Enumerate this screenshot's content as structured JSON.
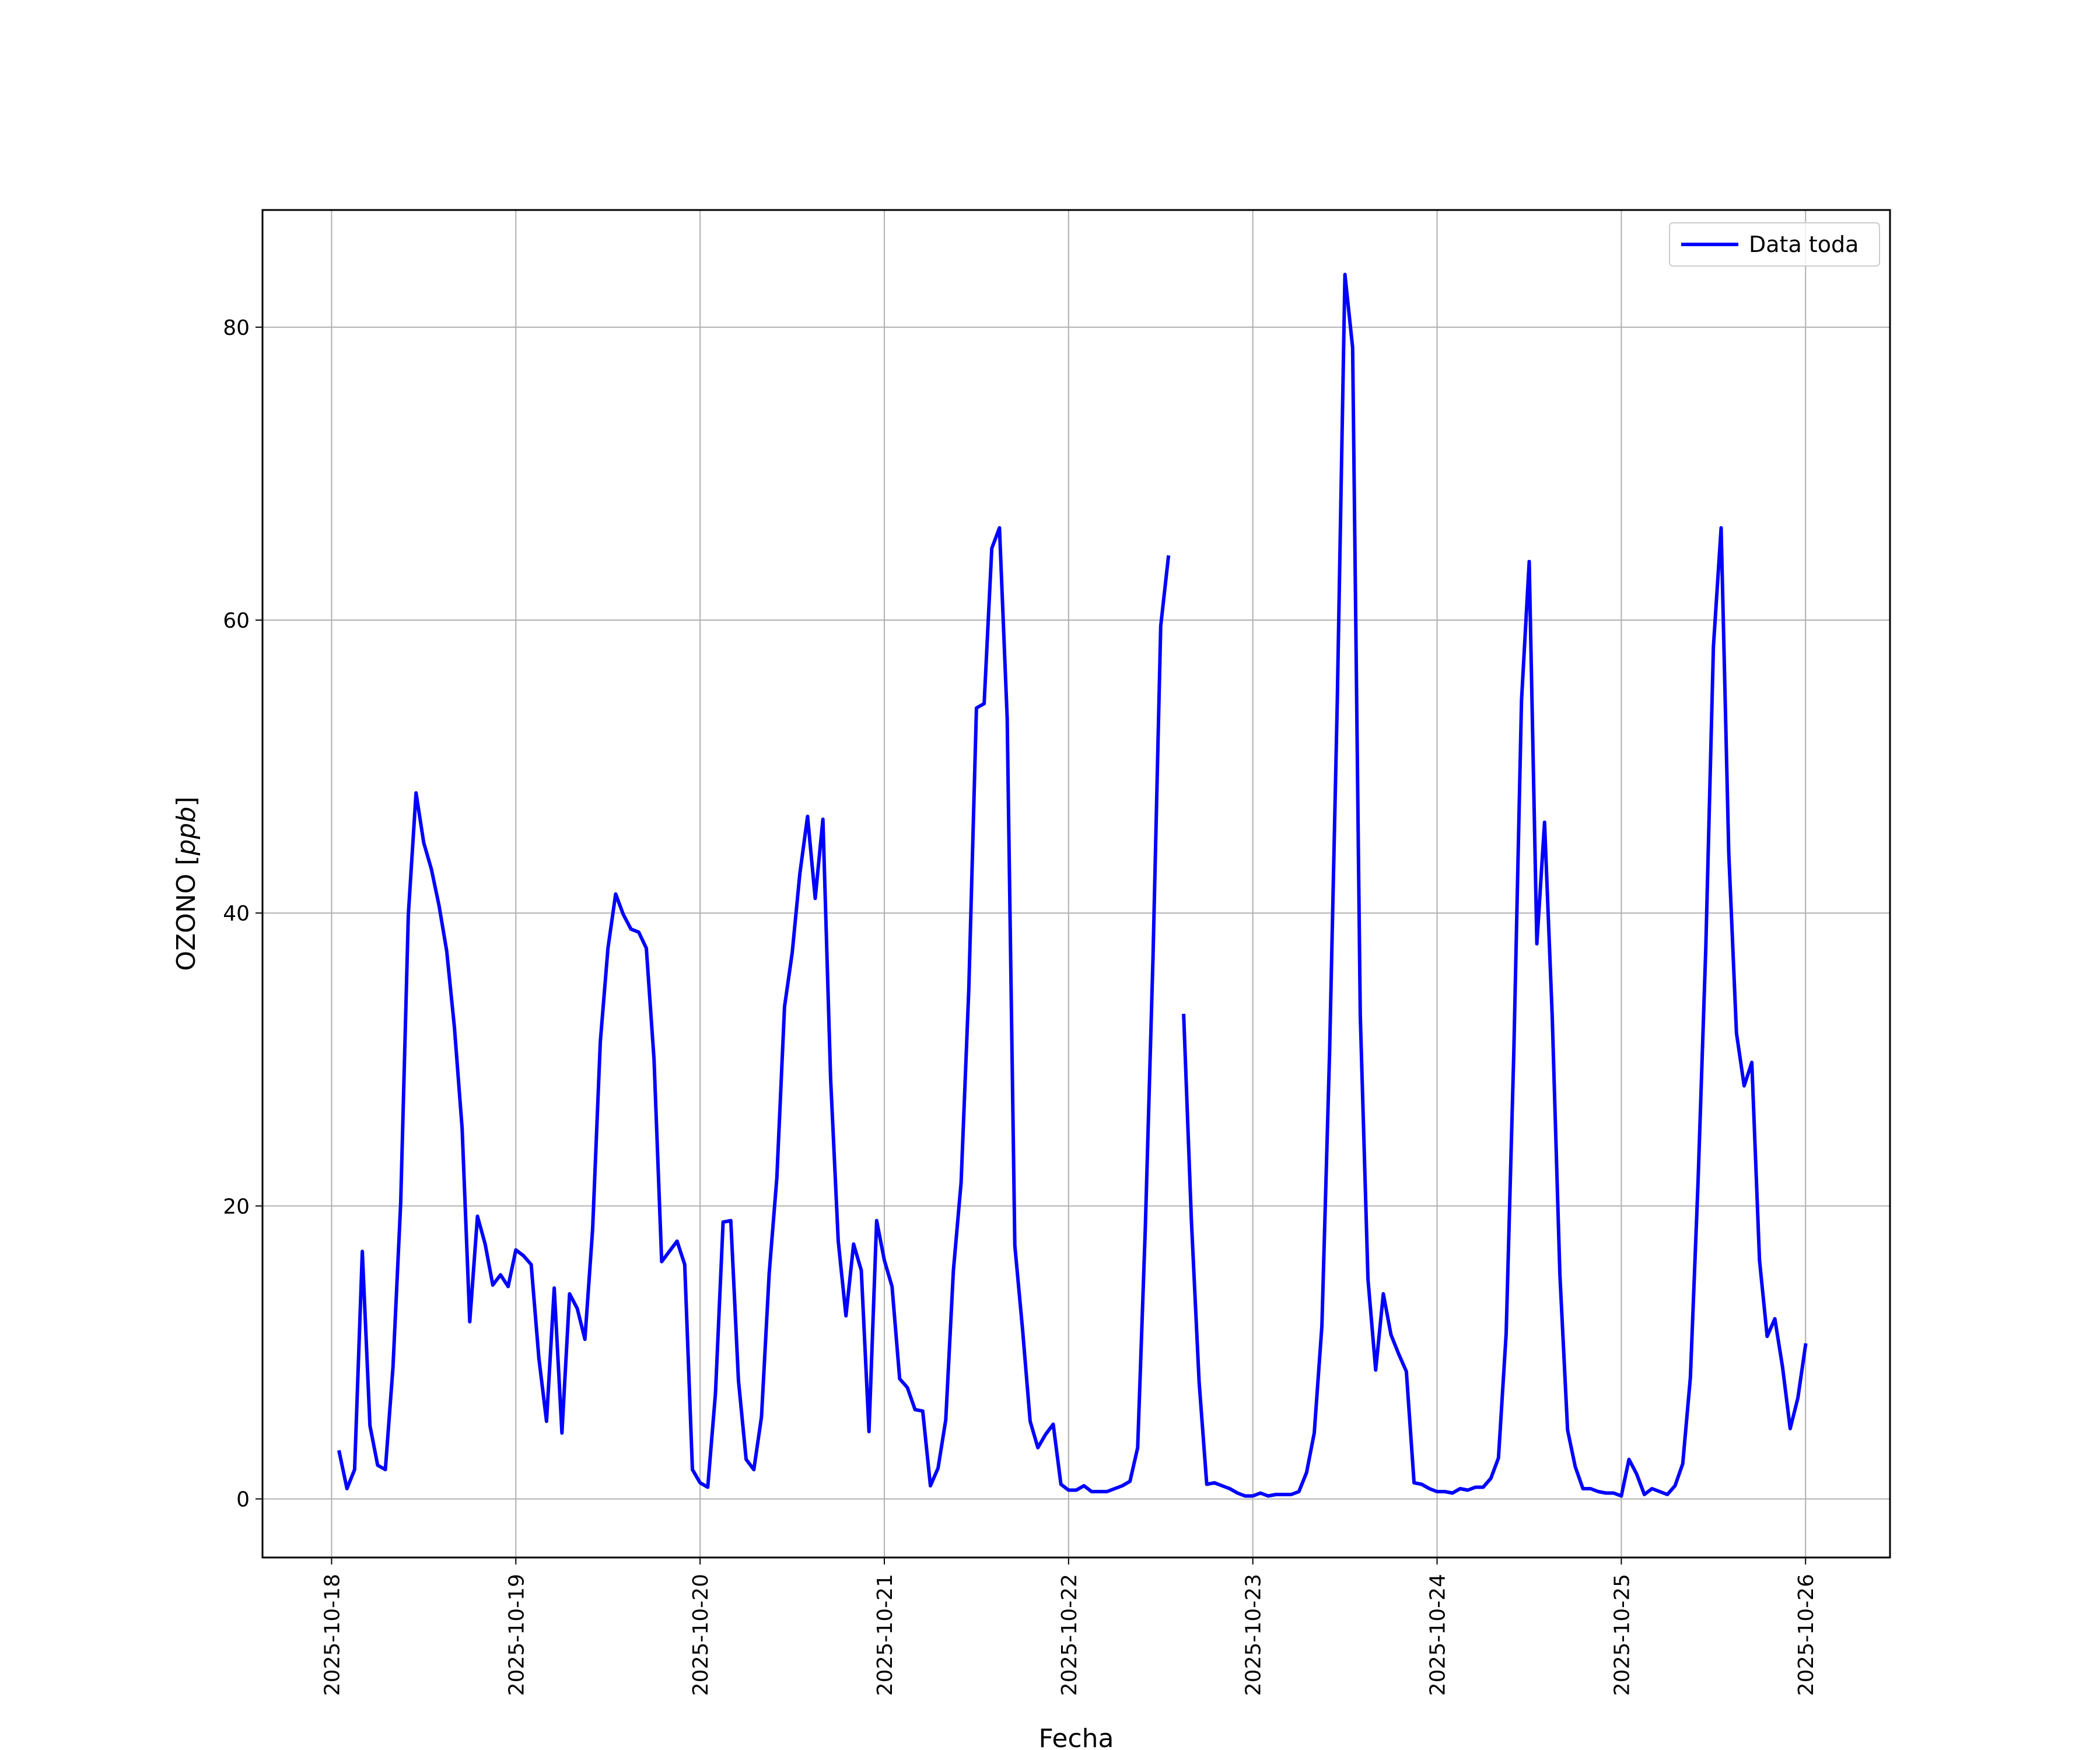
{
  "chart_data": {
    "type": "line",
    "title": "",
    "xlabel": "Fecha",
    "ylabel": "OZONO [ppb]",
    "ylabel_main": "OZONO [",
    "ylabel_unit": "ppb",
    "ylabel_close": "]",
    "x_start": "2025-10-18 00:00",
    "x_end": "2025-10-26 00:00",
    "xlim": [
      "2025-10-17 15:00",
      "2025-10-26 11:00"
    ],
    "ylim": [
      -4,
      88
    ],
    "x_ticks": [
      "2025-10-18",
      "2025-10-19",
      "2025-10-20",
      "2025-10-21",
      "2025-10-22",
      "2025-10-23",
      "2025-10-24",
      "2025-10-25",
      "2025-10-26"
    ],
    "y_ticks": [
      0,
      20,
      40,
      60,
      80
    ],
    "grid": true,
    "legend": {
      "position": "upper-right",
      "entries": [
        "Data toda"
      ]
    },
    "series": [
      {
        "name": "Data toda",
        "color": "#0000ff",
        "points": [
          [
            "2025-10-18 01:00",
            3.2
          ],
          [
            "2025-10-18 02:00",
            0.7
          ],
          [
            "2025-10-18 03:00",
            2.0
          ],
          [
            "2025-10-18 04:00",
            16.9
          ],
          [
            "2025-10-18 05:00",
            5.0
          ],
          [
            "2025-10-18 06:00",
            2.3
          ],
          [
            "2025-10-18 07:00",
            2.0
          ],
          [
            "2025-10-18 08:00",
            9.0
          ],
          [
            "2025-10-18 09:00",
            20.2
          ],
          [
            "2025-10-18 10:00",
            39.9
          ],
          [
            "2025-10-18 11:00",
            48.2
          ],
          [
            "2025-10-18 12:00",
            44.8
          ],
          [
            "2025-10-18 13:00",
            43.0
          ],
          [
            "2025-10-18 14:00",
            40.5
          ],
          [
            "2025-10-18 15:00",
            37.4
          ],
          [
            "2025-10-18 16:00",
            32.2
          ],
          [
            "2025-10-18 17:00",
            25.3
          ],
          [
            "2025-10-18 18:00",
            12.1
          ],
          [
            "2025-10-18 19:00",
            19.3
          ],
          [
            "2025-10-18 20:00",
            17.4
          ],
          [
            "2025-10-18 21:00",
            14.6
          ],
          [
            "2025-10-18 22:00",
            15.3
          ],
          [
            "2025-10-18 23:00",
            14.5
          ],
          [
            "2025-10-19 00:00",
            17.0
          ],
          [
            "2025-10-19 01:00",
            16.6
          ],
          [
            "2025-10-19 02:00",
            16.0
          ],
          [
            "2025-10-19 03:00",
            9.6
          ],
          [
            "2025-10-19 04:00",
            5.3
          ],
          [
            "2025-10-19 05:00",
            14.4
          ],
          [
            "2025-10-19 06:00",
            4.5
          ],
          [
            "2025-10-19 07:00",
            14.0
          ],
          [
            "2025-10-19 08:00",
            13.0
          ],
          [
            "2025-10-19 09:00",
            10.9
          ],
          [
            "2025-10-19 10:00",
            18.4
          ],
          [
            "2025-10-19 11:00",
            31.2
          ],
          [
            "2025-10-19 12:00",
            37.6
          ],
          [
            "2025-10-19 13:00",
            41.3
          ],
          [
            "2025-10-19 14:00",
            39.9
          ],
          [
            "2025-10-19 15:00",
            38.9
          ],
          [
            "2025-10-19 16:00",
            38.7
          ],
          [
            "2025-10-19 17:00",
            37.6
          ],
          [
            "2025-10-19 18:00",
            30.0
          ],
          [
            "2025-10-19 19:00",
            16.2
          ],
          [
            "2025-10-19 20:00",
            16.9
          ],
          [
            "2025-10-19 21:00",
            17.6
          ],
          [
            "2025-10-19 22:00",
            16.0
          ],
          [
            "2025-10-19 23:00",
            2.0
          ],
          [
            "2025-10-20 00:00",
            1.1
          ],
          [
            "2025-10-20 01:00",
            0.8
          ],
          [
            "2025-10-20 02:00",
            7.2
          ],
          [
            "2025-10-20 03:00",
            18.9
          ],
          [
            "2025-10-20 04:00",
            19.0
          ],
          [
            "2025-10-20 05:00",
            8.1
          ],
          [
            "2025-10-20 06:00",
            2.7
          ],
          [
            "2025-10-20 07:00",
            2.0
          ],
          [
            "2025-10-20 08:00",
            5.6
          ],
          [
            "2025-10-20 09:00",
            15.4
          ],
          [
            "2025-10-20 10:00",
            21.9
          ],
          [
            "2025-10-20 11:00",
            33.6
          ],
          [
            "2025-10-20 12:00",
            37.3
          ],
          [
            "2025-10-20 13:00",
            42.7
          ],
          [
            "2025-10-20 14:00",
            46.6
          ],
          [
            "2025-10-20 15:00",
            41.0
          ],
          [
            "2025-10-20 16:00",
            46.4
          ],
          [
            "2025-10-20 17:00",
            28.7
          ],
          [
            "2025-10-20 18:00",
            17.6
          ],
          [
            "2025-10-20 19:00",
            12.5
          ],
          [
            "2025-10-20 20:00",
            17.4
          ],
          [
            "2025-10-20 21:00",
            15.6
          ],
          [
            "2025-10-20 22:00",
            4.6
          ],
          [
            "2025-10-20 23:00",
            19.0
          ],
          [
            "2025-10-21 00:00",
            16.3
          ],
          [
            "2025-10-21 01:00",
            14.5
          ],
          [
            "2025-10-21 02:00",
            8.2
          ],
          [
            "2025-10-21 03:00",
            7.6
          ],
          [
            "2025-10-21 04:00",
            6.1
          ],
          [
            "2025-10-21 05:00",
            6.0
          ],
          [
            "2025-10-21 06:00",
            0.9
          ],
          [
            "2025-10-21 07:00",
            2.1
          ],
          [
            "2025-10-21 08:00",
            5.4
          ],
          [
            "2025-10-21 09:00",
            15.6
          ],
          [
            "2025-10-21 10:00",
            21.6
          ],
          [
            "2025-10-21 11:00",
            34.8
          ],
          [
            "2025-10-21 12:00",
            54.0
          ],
          [
            "2025-10-21 13:00",
            54.3
          ],
          [
            "2025-10-21 14:00",
            64.9
          ],
          [
            "2025-10-21 15:00",
            66.3
          ],
          [
            "2025-10-21 16:00",
            53.3
          ],
          [
            "2025-10-21 17:00",
            17.3
          ],
          [
            "2025-10-21 18:00",
            11.6
          ],
          [
            "2025-10-21 19:00",
            5.3
          ],
          [
            "2025-10-21 20:00",
            3.5
          ],
          [
            "2025-10-21 21:00",
            4.4
          ],
          [
            "2025-10-21 22:00",
            5.1
          ],
          [
            "2025-10-21 23:00",
            1.0
          ],
          [
            "2025-10-22 00:00",
            0.6
          ],
          [
            "2025-10-22 01:00",
            0.6
          ],
          [
            "2025-10-22 02:00",
            0.9
          ],
          [
            "2025-10-22 03:00",
            0.5
          ],
          [
            "2025-10-22 04:00",
            0.5
          ],
          [
            "2025-10-22 05:00",
            0.5
          ],
          [
            "2025-10-22 06:00",
            0.7
          ],
          [
            "2025-10-22 07:00",
            0.9
          ],
          [
            "2025-10-22 08:00",
            1.2
          ],
          [
            "2025-10-22 09:00",
            3.5
          ],
          [
            "2025-10-22 10:00",
            18.5
          ],
          [
            "2025-10-22 11:00",
            37.0
          ],
          [
            "2025-10-22 12:00",
            59.6
          ],
          [
            "2025-10-22 13:00",
            64.3
          ],
          null,
          [
            "2025-10-22 15:00",
            33.0
          ],
          [
            "2025-10-22 16:00",
            19.0
          ],
          [
            "2025-10-22 17:00",
            8.0
          ],
          [
            "2025-10-22 18:00",
            1.0
          ],
          [
            "2025-10-22 19:00",
            1.1
          ],
          [
            "2025-10-22 20:00",
            0.9
          ],
          [
            "2025-10-22 21:00",
            0.7
          ],
          [
            "2025-10-22 22:00",
            0.4
          ],
          [
            "2025-10-22 23:00",
            0.2
          ],
          [
            "2025-10-23 00:00",
            0.2
          ],
          [
            "2025-10-23 01:00",
            0.4
          ],
          [
            "2025-10-23 02:00",
            0.2
          ],
          [
            "2025-10-23 03:00",
            0.3
          ],
          [
            "2025-10-23 04:00",
            0.3
          ],
          [
            "2025-10-23 05:00",
            0.3
          ],
          [
            "2025-10-23 06:00",
            0.5
          ],
          [
            "2025-10-23 07:00",
            1.8
          ],
          [
            "2025-10-23 08:00",
            4.5
          ],
          [
            "2025-10-23 09:00",
            11.8
          ],
          [
            "2025-10-23 10:00",
            30.5
          ],
          [
            "2025-10-23 11:00",
            54.5
          ],
          [
            "2025-10-23 12:00",
            83.6
          ],
          [
            "2025-10-23 13:00",
            78.6
          ],
          [
            "2025-10-23 14:00",
            33.0
          ],
          [
            "2025-10-23 15:00",
            15.0
          ],
          [
            "2025-10-23 16:00",
            8.8
          ],
          [
            "2025-10-23 17:00",
            14.0
          ],
          [
            "2025-10-23 18:00",
            11.2
          ],
          [
            "2025-10-23 19:00",
            9.9
          ],
          [
            "2025-10-23 20:00",
            8.7
          ],
          [
            "2025-10-23 21:00",
            1.1
          ],
          [
            "2025-10-23 22:00",
            1.0
          ],
          [
            "2025-10-23 23:00",
            0.7
          ],
          [
            "2025-10-24 00:00",
            0.5
          ],
          [
            "2025-10-24 01:00",
            0.5
          ],
          [
            "2025-10-24 02:00",
            0.4
          ],
          [
            "2025-10-24 03:00",
            0.7
          ],
          [
            "2025-10-24 04:00",
            0.6
          ],
          [
            "2025-10-24 05:00",
            0.8
          ],
          [
            "2025-10-24 06:00",
            0.8
          ],
          [
            "2025-10-24 07:00",
            1.4
          ],
          [
            "2025-10-24 08:00",
            2.8
          ],
          [
            "2025-10-24 09:00",
            11.3
          ],
          [
            "2025-10-24 10:00",
            30.5
          ],
          [
            "2025-10-24 11:00",
            54.5
          ],
          [
            "2025-10-24 12:00",
            64.0
          ],
          [
            "2025-10-24 13:00",
            37.9
          ],
          [
            "2025-10-24 14:00",
            46.2
          ],
          [
            "2025-10-24 15:00",
            33.0
          ],
          [
            "2025-10-24 16:00",
            15.3
          ],
          [
            "2025-10-24 17:00",
            4.7
          ],
          [
            "2025-10-24 18:00",
            2.2
          ],
          [
            "2025-10-24 19:00",
            0.7
          ],
          [
            "2025-10-24 20:00",
            0.7
          ],
          [
            "2025-10-24 21:00",
            0.5
          ],
          [
            "2025-10-24 22:00",
            0.4
          ],
          [
            "2025-10-24 23:00",
            0.4
          ],
          [
            "2025-10-25 00:00",
            0.2
          ],
          [
            "2025-10-25 01:00",
            2.7
          ],
          [
            "2025-10-25 02:00",
            1.7
          ],
          [
            "2025-10-25 03:00",
            0.3
          ],
          [
            "2025-10-25 04:00",
            0.7
          ],
          [
            "2025-10-25 05:00",
            0.5
          ],
          [
            "2025-10-25 06:00",
            0.3
          ],
          [
            "2025-10-25 07:00",
            0.9
          ],
          [
            "2025-10-25 08:00",
            2.4
          ],
          [
            "2025-10-25 09:00",
            8.3
          ],
          [
            "2025-10-25 10:00",
            21.7
          ],
          [
            "2025-10-25 11:00",
            37.6
          ],
          [
            "2025-10-25 12:00",
            58.2
          ],
          [
            "2025-10-25 13:00",
            66.3
          ],
          [
            "2025-10-25 14:00",
            44.1
          ],
          [
            "2025-10-25 15:00",
            31.8
          ],
          [
            "2025-10-25 16:00",
            28.2
          ],
          [
            "2025-10-25 17:00",
            29.8
          ],
          [
            "2025-10-25 18:00",
            16.3
          ],
          [
            "2025-10-25 19:00",
            11.1
          ],
          [
            "2025-10-25 20:00",
            12.3
          ],
          [
            "2025-10-25 21:00",
            9.0
          ],
          [
            "2025-10-25 22:00",
            4.8
          ],
          [
            "2025-10-25 23:00",
            6.9
          ],
          [
            "2025-10-26 00:00",
            10.5
          ]
        ]
      }
    ]
  }
}
